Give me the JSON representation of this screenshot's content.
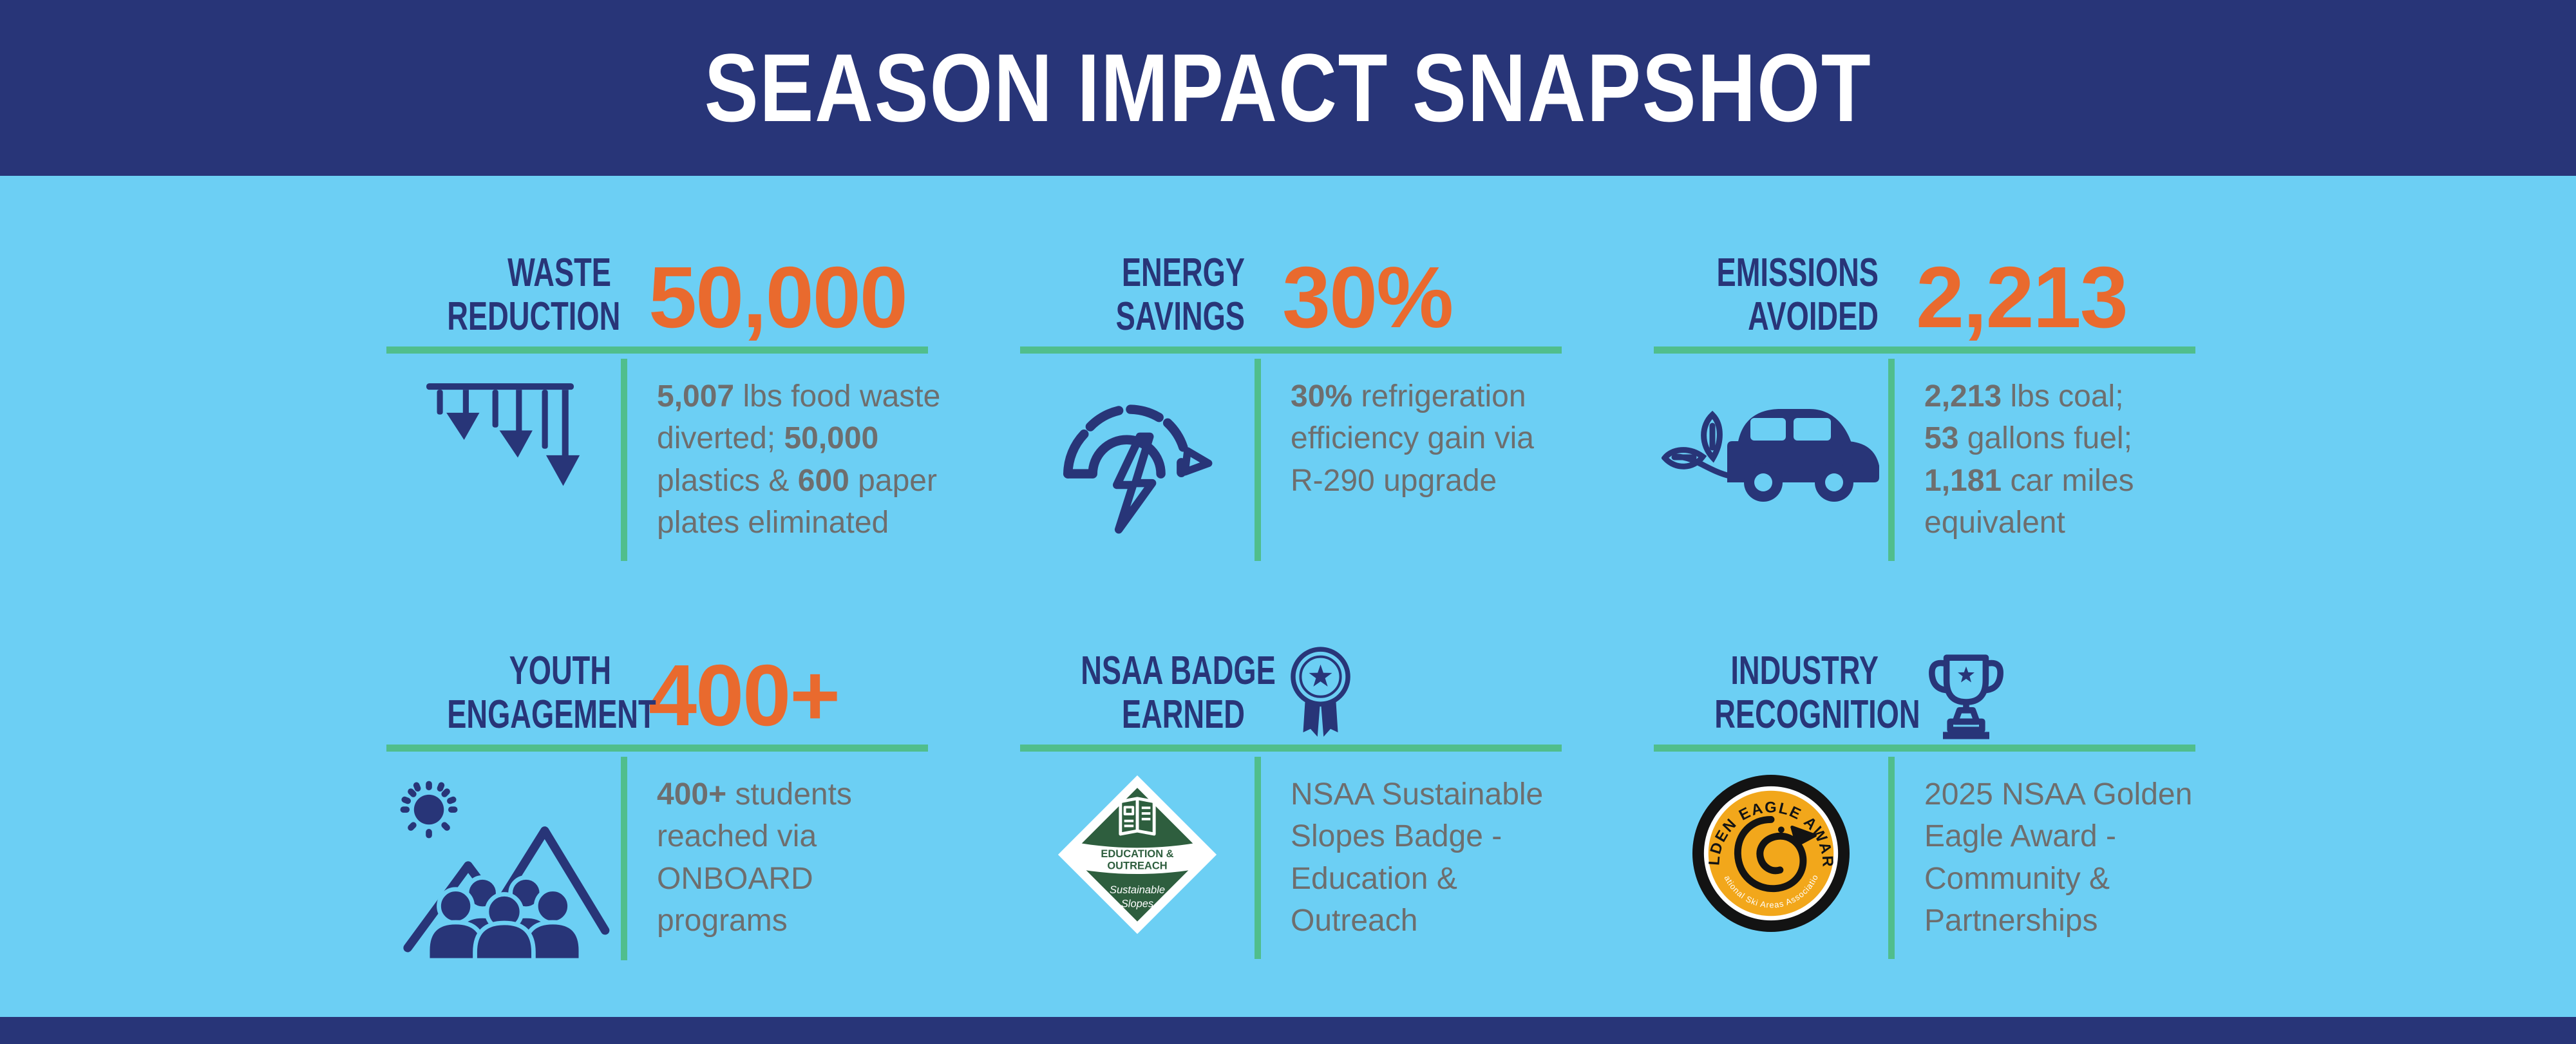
{
  "colors": {
    "navy": "#283578",
    "sky_blue": "#6CCFF4",
    "orange": "#E96A2E",
    "green_line": "#50BE8C",
    "body_gray": "#6E6E6E",
    "badge_forest_green": "#2E5E3E",
    "badge_gold": "#F2A71B",
    "badge_black": "#131313"
  },
  "header": {
    "title": "SEASON IMPACT SNAPSHOT"
  },
  "cards": [
    {
      "id": "waste-reduction",
      "title": "WASTE\nREDUCTION",
      "value": "50,000",
      "icon": "down-arrows-icon",
      "body": [
        {
          "t": "5,007",
          "b": true
        },
        {
          "t": " lbs food waste\ndiverted; ",
          "b": false
        },
        {
          "t": "50,000",
          "b": true
        },
        {
          "t": "\nplastics & ",
          "b": false
        },
        {
          "t": "600",
          "b": true
        },
        {
          "t": " paper\nplates eliminated",
          "b": false
        }
      ]
    },
    {
      "id": "energy-savings",
      "title": "ENERGY\nSAVINGS",
      "value": "30%",
      "icon": "gauge-lightning-icon",
      "body": [
        {
          "t": "30%",
          "b": true
        },
        {
          "t": " refrigeration\nefficiency gain via\nR-290 upgrade",
          "b": false
        }
      ]
    },
    {
      "id": "emissions-avoided",
      "title": "EMISSIONS\nAVOIDED",
      "value": "2,213",
      "icon": "eco-car-icon",
      "body": [
        {
          "t": "2,213",
          "b": true
        },
        {
          "t": " lbs coal;\n",
          "b": false
        },
        {
          "t": "53",
          "b": true
        },
        {
          "t": " gallons fuel;\n",
          "b": false
        },
        {
          "t": "1,181",
          "b": true
        },
        {
          "t": " car miles\nequivalent",
          "b": false
        }
      ]
    },
    {
      "id": "youth-engagement",
      "title": "YOUTH\nENGAGEMENT",
      "value": "400+",
      "icon": "youth-outdoors-icon",
      "body": [
        {
          "t": "400+",
          "b": true
        },
        {
          "t": " students\nreached via\nONBOARD\nprograms",
          "b": false
        }
      ]
    },
    {
      "id": "nsaa-badge-earned",
      "title": "NSAA BADGE\nEARNED",
      "value_icon": "ribbon-rosette-icon",
      "icon": "sustainable-slopes-diamond-badge",
      "badge": {
        "line1": "EDUCATION &",
        "line2": "OUTREACH",
        "script1": "Sustainable",
        "script2": "Slopes"
      },
      "body": [
        {
          "t": "NSAA Sustainable\nSlopes Badge -\nEducation &\nOutreach",
          "b": false
        }
      ]
    },
    {
      "id": "industry-recognition",
      "title": "INDUSTRY\nRECOGNITION",
      "value_icon": "trophy-icon",
      "icon": "golden-eagle-awards-badge",
      "badge": {
        "arc_top": "GOLDEN EAGLE AWARDS",
        "arc_bottom": "National Ski Areas Association"
      },
      "body": [
        {
          "t": "2025 NSAA Golden\nEagle Award -\nCommunity &\nPartnerships",
          "b": false
        }
      ]
    }
  ]
}
